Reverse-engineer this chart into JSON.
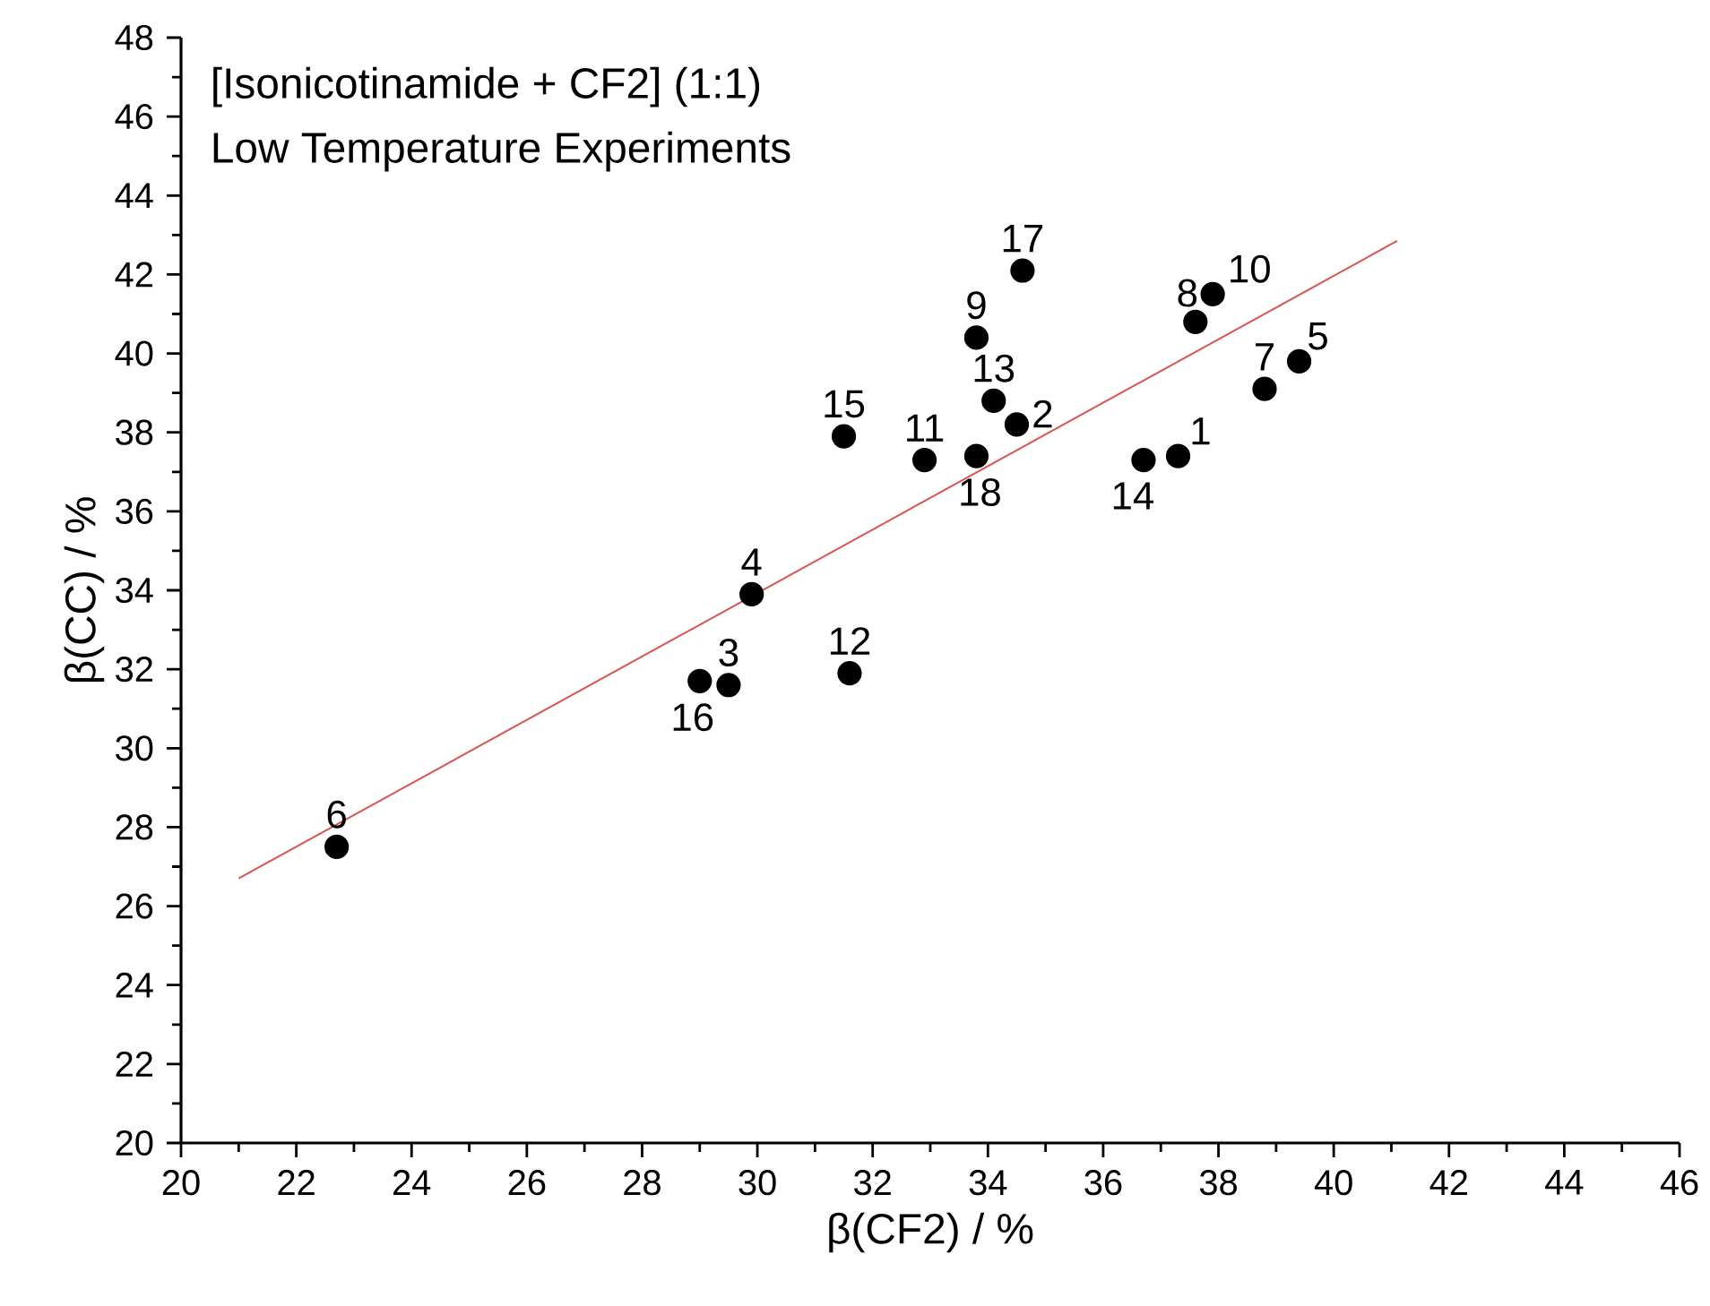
{
  "chart_data": {
    "type": "scatter",
    "title": "[Isonicotinamide + CF2] (1:1)",
    "subtitle": "Low Temperature Experiments",
    "xlabel": "β(CF2) / %",
    "ylabel": "β(CC) / %",
    "xlim": [
      20,
      46
    ],
    "xticks": [
      20,
      22,
      24,
      26,
      28,
      30,
      32,
      34,
      36,
      38,
      40,
      42,
      44,
      46
    ],
    "ylim": [
      20,
      48
    ],
    "yticks": [
      20,
      22,
      24,
      26,
      28,
      30,
      32,
      34,
      36,
      38,
      40,
      42,
      44,
      46,
      48
    ],
    "marker": "circle",
    "grid": false,
    "series": [
      {
        "type": "scatter",
        "color": "#000000",
        "x": [
          37.3,
          34.5,
          29.5,
          29.9,
          39.4,
          22.7,
          38.8,
          37.6,
          33.8,
          37.9,
          32.9,
          31.6,
          34.1,
          36.7,
          31.5,
          29.0,
          34.6,
          33.8
        ],
        "values": [
          37.4,
          38.2,
          31.6,
          33.9,
          39.8,
          27.5,
          39.1,
          40.8,
          40.4,
          41.5,
          37.3,
          31.9,
          38.8,
          37.3,
          37.9,
          31.7,
          42.1,
          37.4
        ]
      },
      {
        "type": "line",
        "color": "#d9534f",
        "marker": "none",
        "line_style": "solid",
        "x": [
          21.0,
          41.1
        ],
        "values": [
          26.7,
          42.85
        ]
      }
    ],
    "annotations": [
      {
        "text": "1",
        "x": 37.3,
        "y": 37.4
      },
      {
        "text": "2",
        "x": 34.5,
        "y": 38.2
      },
      {
        "text": "3",
        "x": 29.5,
        "y": 31.6
      },
      {
        "text": "4",
        "x": 29.9,
        "y": 33.9
      },
      {
        "text": "5",
        "x": 39.4,
        "y": 39.8
      },
      {
        "text": "6",
        "x": 22.7,
        "y": 27.5
      },
      {
        "text": "7",
        "x": 38.8,
        "y": 39.1
      },
      {
        "text": "8",
        "x": 37.6,
        "y": 40.8
      },
      {
        "text": "9",
        "x": 33.8,
        "y": 40.4
      },
      {
        "text": "10",
        "x": 37.9,
        "y": 41.5
      },
      {
        "text": "11",
        "x": 32.9,
        "y": 37.3
      },
      {
        "text": "12",
        "x": 31.6,
        "y": 31.9
      },
      {
        "text": "13",
        "x": 34.1,
        "y": 38.8
      },
      {
        "text": "14",
        "x": 36.7,
        "y": 37.3
      },
      {
        "text": "15",
        "x": 31.5,
        "y": 37.9
      },
      {
        "text": "16",
        "x": 29.0,
        "y": 31.7
      },
      {
        "text": "17",
        "x": 34.6,
        "y": 42.1
      },
      {
        "text": "18",
        "x": 33.8,
        "y": 37.4
      }
    ]
  }
}
